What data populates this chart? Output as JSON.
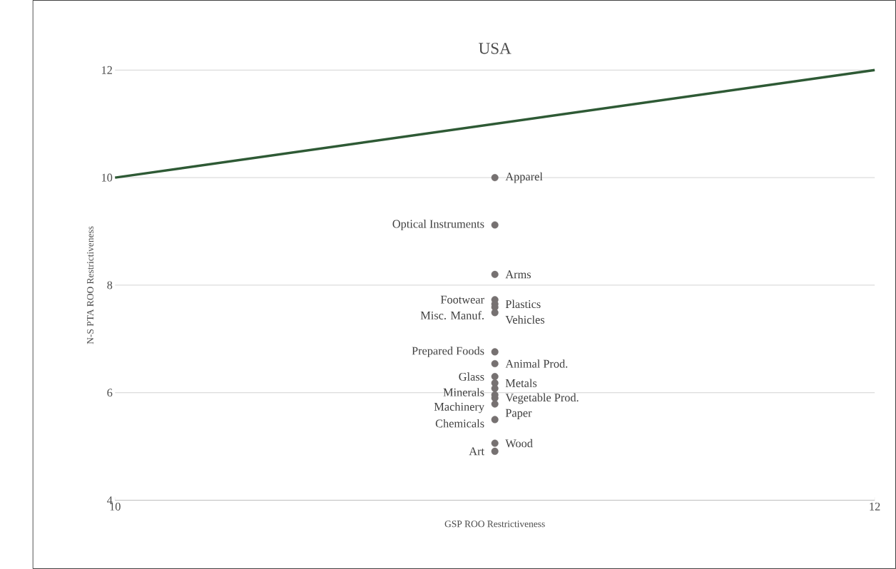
{
  "chart_data": {
    "type": "scatter",
    "title": "USA",
    "xlabel": "GSP ROO Restrictiveness",
    "ylabel": "N-S PTA ROO Restrictiveness",
    "xlim": [
      10,
      12
    ],
    "xticks": [
      10,
      12
    ],
    "ylim": [
      4,
      12
    ],
    "yticks": [
      4,
      6,
      8,
      10,
      12
    ],
    "grid": "y",
    "series": [
      {
        "type": "line",
        "color": "#2e5a35",
        "marker": "none",
        "x": [
          10,
          12
        ],
        "values": [
          10,
          12
        ]
      },
      {
        "name": "Apparel",
        "color": "#767171",
        "x": [
          11
        ],
        "values": [
          10.0
        ]
      },
      {
        "name": "Optical Instruments",
        "color": "#767171",
        "x": [
          11
        ],
        "values": [
          9.12
        ]
      },
      {
        "name": "Arms",
        "color": "#767171",
        "x": [
          11
        ],
        "values": [
          8.2
        ]
      },
      {
        "name": "Footwear",
        "color": "#767171",
        "x": [
          11
        ],
        "values": [
          7.73
        ]
      },
      {
        "name": "Plastics",
        "color": "#767171",
        "x": [
          11
        ],
        "values": [
          7.65
        ]
      },
      {
        "name": "Misc. Manuf.",
        "color": "#767171",
        "x": [
          11
        ],
        "values": [
          7.59
        ]
      },
      {
        "name": "Vehicles",
        "color": "#767171",
        "x": [
          11
        ],
        "values": [
          7.49
        ]
      },
      {
        "name": "Prepared Foods",
        "color": "#767171",
        "x": [
          11
        ],
        "values": [
          6.76
        ]
      },
      {
        "name": "Animal Prod.",
        "color": "#767171",
        "x": [
          11
        ],
        "values": [
          6.54
        ]
      },
      {
        "name": "Glass",
        "color": "#767171",
        "x": [
          11
        ],
        "values": [
          6.3
        ]
      },
      {
        "name": "Metals",
        "color": "#767171",
        "x": [
          11
        ],
        "values": [
          6.18
        ]
      },
      {
        "name": "Minerals",
        "color": "#767171",
        "x": [
          11
        ],
        "values": [
          6.08
        ]
      },
      {
        "name": "Vegetable Prod.",
        "color": "#767171",
        "x": [
          11
        ],
        "values": [
          5.96
        ]
      },
      {
        "name": "Machinery",
        "color": "#767171",
        "x": [
          11
        ],
        "values": [
          5.9
        ]
      },
      {
        "name": "Paper",
        "color": "#767171",
        "x": [
          11
        ],
        "values": [
          5.79
        ]
      },
      {
        "name": "Chemicals",
        "color": "#767171",
        "x": [
          11
        ],
        "values": [
          5.5
        ]
      },
      {
        "name": "Wood",
        "color": "#767171",
        "x": [
          11
        ],
        "values": [
          5.06
        ]
      },
      {
        "name": "Art",
        "color": "#767171",
        "x": [
          11
        ],
        "values": [
          4.91
        ]
      }
    ]
  }
}
